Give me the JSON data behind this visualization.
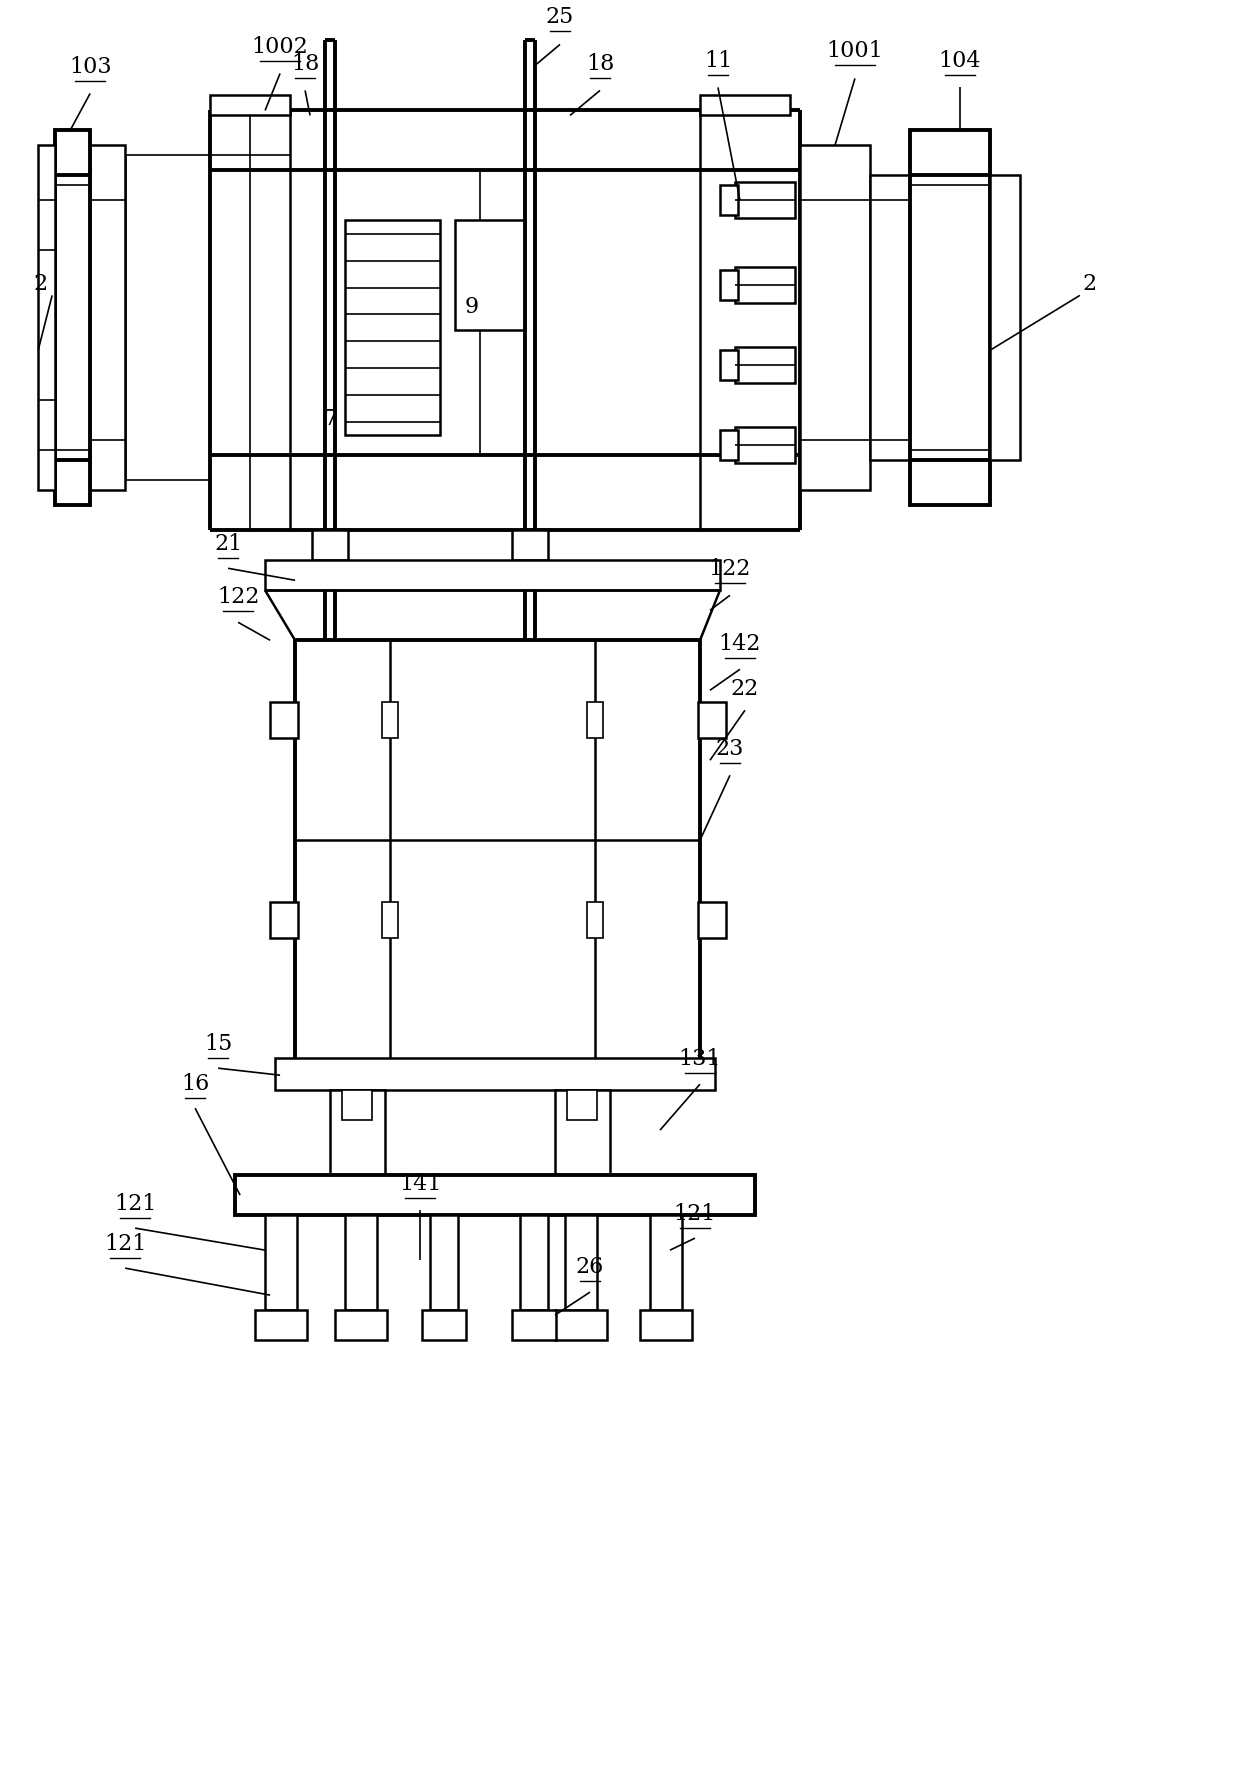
{
  "bg_color": "#ffffff",
  "line_color": "#000000",
  "lw_thin": 1.2,
  "lw_med": 1.8,
  "lw_thick": 2.8,
  "figw": 12.4,
  "figh": 17.72,
  "dpi": 100
}
